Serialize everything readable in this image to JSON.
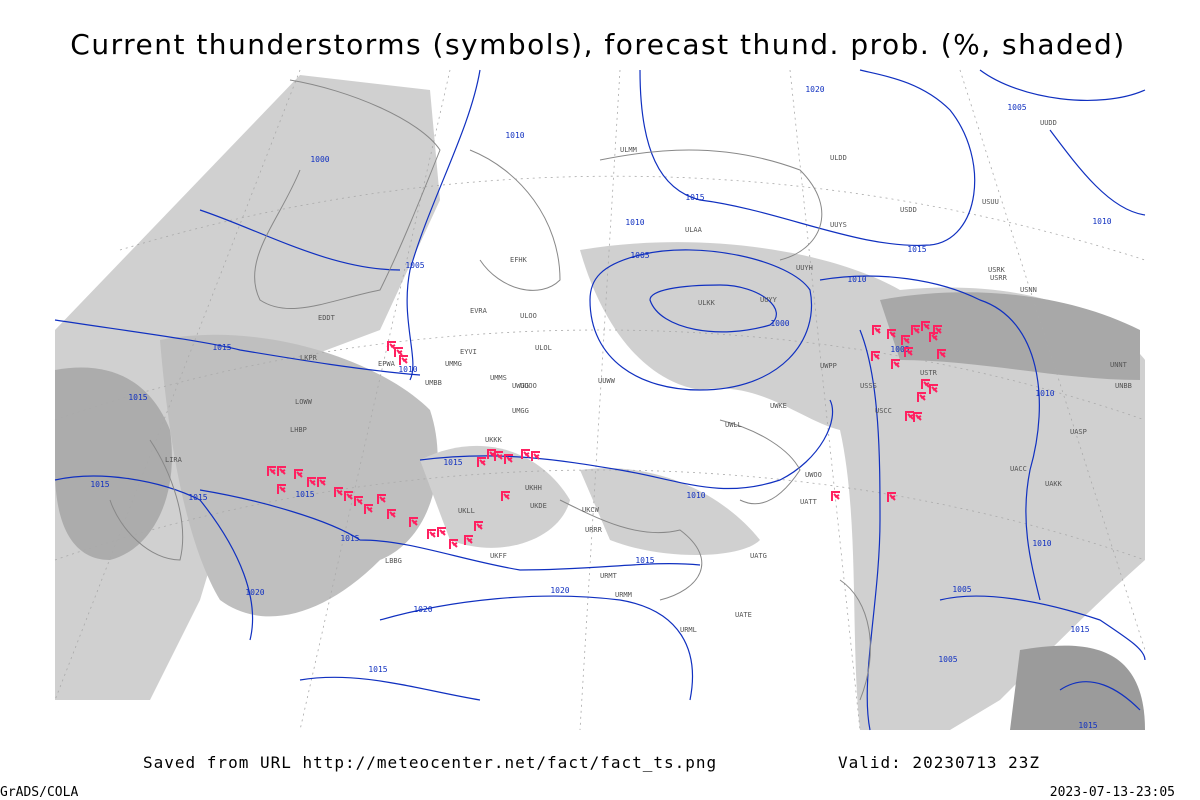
{
  "title": "Current thunderstorms (symbols), forecast thund. prob. (%, shaded)",
  "footer": {
    "source": "Saved from URL http://meteocenter.net/fact/fact_ts.png",
    "valid": "Valid: 20230713 23Z",
    "software": "GrADS/COLA",
    "timestamp": "2023-07-13-23:05"
  },
  "isobar_labels": [
    "1000",
    "1010",
    "1005",
    "1015",
    "1010",
    "1015",
    "1015",
    "1015",
    "1015",
    "1015",
    "1015",
    "1020",
    "1020",
    "1015",
    "1020",
    "1015",
    "1010",
    "1005",
    "1010",
    "1015",
    "1000",
    "1020",
    "1005",
    "1010",
    "1015",
    "1010",
    "1005",
    "1010",
    "1010",
    "1005",
    "1005",
    "1015",
    "1015"
  ],
  "station_labels": [
    "ULMM",
    "ULAA",
    "ULDD",
    "USDD",
    "UUYS",
    "UUYH",
    "USRR",
    "USRK",
    "USNN",
    "ULKK",
    "UUYY",
    "UUWW",
    "UWGG",
    "UWKE",
    "UWLL",
    "UWPP",
    "UUOO",
    "UMMS",
    "UMGG",
    "ULOL",
    "EVRA",
    "ULOO",
    "UKKK",
    "UKHH",
    "UKDE",
    "UKCW",
    "URRR",
    "URMT",
    "URMM",
    "URML",
    "UATE",
    "UATG",
    "UACC",
    "UAKK",
    "UASP",
    "UNBB",
    "UNNT",
    "USCC",
    "USSS",
    "USTR",
    "UWOO",
    "UATT",
    "UKFF",
    "UKLL",
    "LKPR",
    "LOWW",
    "LHBP",
    "LBBG",
    "LIRA",
    "EPWA",
    "EDDT",
    "UMBB",
    "UMMG",
    "EYVI",
    "EFHK",
    "USUU",
    "UUDD"
  ]
}
